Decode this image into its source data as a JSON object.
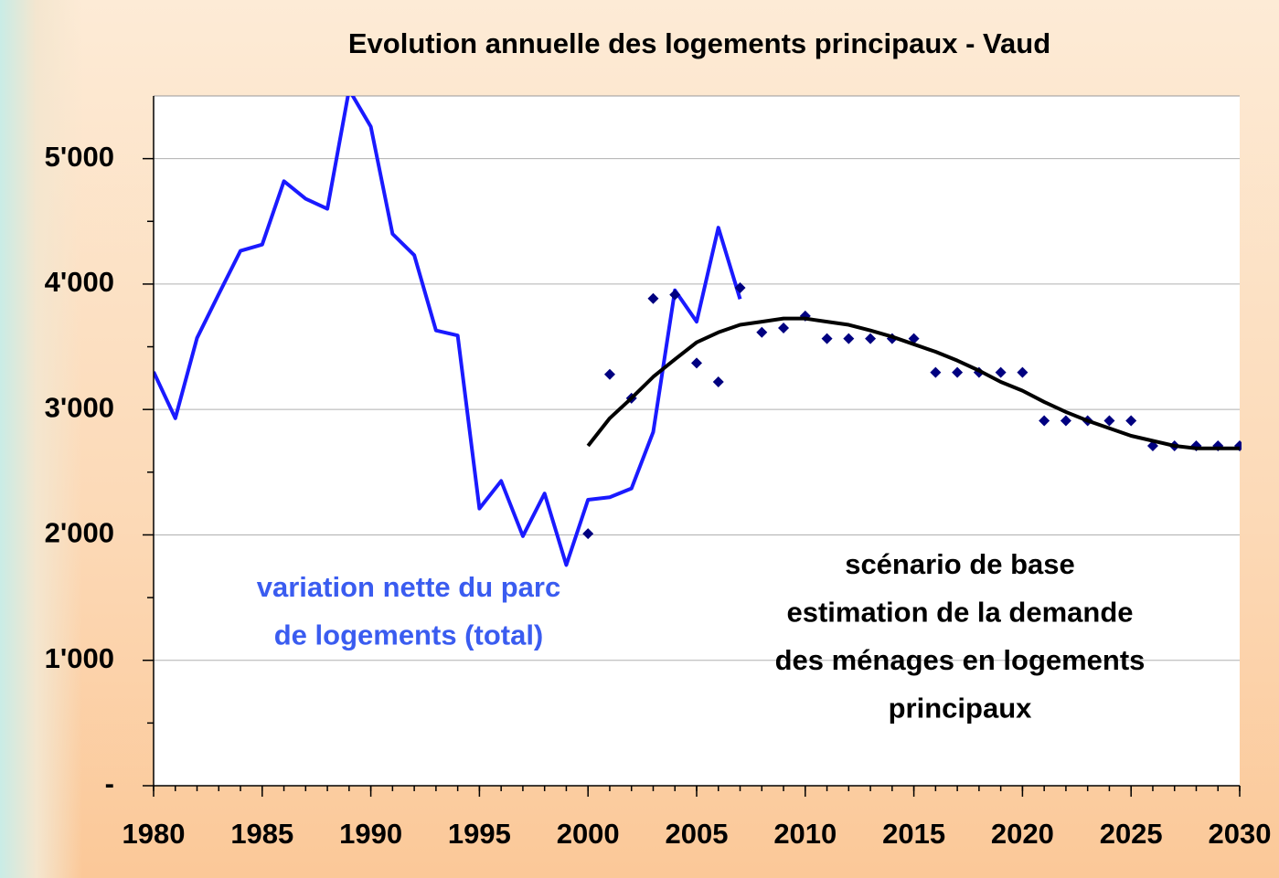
{
  "chart_data": {
    "type": "line",
    "title": "Evolution annuelle des logements principaux - Vaud",
    "xlim": [
      1980,
      2030
    ],
    "xticks": [
      1980,
      1985,
      1990,
      1995,
      2000,
      2005,
      2010,
      2015,
      2020,
      2025,
      2030
    ],
    "ylim": [
      0,
      5500
    ],
    "yticks": [
      {
        "value": 0,
        "label": "-"
      },
      {
        "value": 1000,
        "label": "1'000"
      },
      {
        "value": 2000,
        "label": "2'000"
      },
      {
        "value": 3000,
        "label": "3'000"
      },
      {
        "value": 4000,
        "label": "4'000"
      },
      {
        "value": 5000,
        "label": "5'000"
      }
    ],
    "grid": true,
    "series": [
      {
        "type": "line",
        "color": "#1a1aff",
        "x": [
          1980,
          1981,
          1982,
          1983,
          1984,
          1985,
          1986,
          1987,
          1988,
          1989,
          1990,
          1991,
          1992,
          1993,
          1994,
          1995,
          1996,
          1997,
          1998,
          1999,
          2000,
          2001,
          2002,
          2003,
          2004,
          2005,
          2006,
          2007
        ],
        "values": [
          3300,
          2930,
          3570,
          3920,
          4265,
          4315,
          4820,
          4680,
          4600,
          5550,
          5255,
          4400,
          4230,
          3630,
          3590,
          2210,
          2430,
          1990,
          2330,
          1760,
          2280,
          2300,
          2370,
          2820,
          3950,
          3700,
          4450,
          3880
        ]
      },
      {
        "type": "scatter",
        "color": "#000080",
        "x": [
          2000,
          2001,
          2002,
          2003,
          2004,
          2005,
          2006,
          2007,
          2008,
          2009,
          2010,
          2011,
          2012,
          2013,
          2014,
          2015,
          2016,
          2017,
          2018,
          2019,
          2020,
          2021,
          2022,
          2023,
          2024,
          2025,
          2026,
          2027,
          2028,
          2029,
          2030
        ],
        "values": [
          2010,
          3280,
          3090,
          3885,
          3915,
          3370,
          3220,
          3970,
          3615,
          3650,
          3745,
          3565,
          3565,
          3565,
          3565,
          3565,
          3295,
          3295,
          3295,
          3295,
          3295,
          2910,
          2910,
          2910,
          2910,
          2910,
          2710,
          2710,
          2710,
          2710,
          2710
        ]
      },
      {
        "type": "line",
        "color": "#000000",
        "x": [
          2000,
          2001,
          2002,
          2003,
          2004,
          2005,
          2006,
          2007,
          2008,
          2009,
          2010,
          2011,
          2012,
          2013,
          2014,
          2015,
          2016,
          2017,
          2018,
          2019,
          2020,
          2021,
          2022,
          2023,
          2024,
          2025,
          2026,
          2027,
          2028,
          2029,
          2030
        ],
        "values": [
          2710,
          2930,
          3090,
          3260,
          3400,
          3535,
          3615,
          3675,
          3700,
          3725,
          3725,
          3700,
          3675,
          3630,
          3580,
          3520,
          3460,
          3390,
          3310,
          3220,
          3150,
          3060,
          2980,
          2910,
          2850,
          2790,
          2750,
          2710,
          2690,
          2690,
          2690
        ]
      }
    ],
    "annotations": [
      {
        "color": "#3a5cf0",
        "lines": [
          "variation nette du parc",
          "de logements (total)"
        ]
      },
      {
        "color": "#000000",
        "lines": [
          "scénario de base",
          "estimation de la demande",
          "des ménages en logements",
          "principaux"
        ]
      }
    ]
  }
}
